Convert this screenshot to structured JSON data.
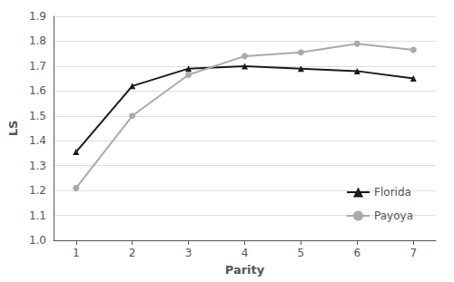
{
  "chart_data": {
    "type": "line",
    "xlabel": "Parity",
    "ylabel": "LS",
    "x": [
      1,
      2,
      3,
      4,
      5,
      6,
      7
    ],
    "series": [
      {
        "name": "Florida",
        "color": "#1a1a1a",
        "marker": "triangle",
        "values": [
          1.355,
          1.62,
          1.69,
          1.7,
          1.69,
          1.68,
          1.65
        ]
      },
      {
        "name": "Payoya",
        "color": "#aaaaaa",
        "marker": "circle",
        "values": [
          1.21,
          1.5,
          1.665,
          1.74,
          1.755,
          1.79,
          1.765
        ]
      }
    ],
    "xlim": [
      0.6,
      7.4
    ],
    "xticks": [
      1,
      2,
      3,
      4,
      5,
      6,
      7
    ],
    "ylim": [
      1.0,
      1.9
    ],
    "yticks": [
      {
        "value": 1,
        "label": "1.0"
      },
      1.1,
      1.2,
      1.3,
      1.4,
      1.5,
      1.6,
      1.7,
      1.8,
      1.9
    ],
    "grid": "y",
    "legend": "lower right"
  }
}
